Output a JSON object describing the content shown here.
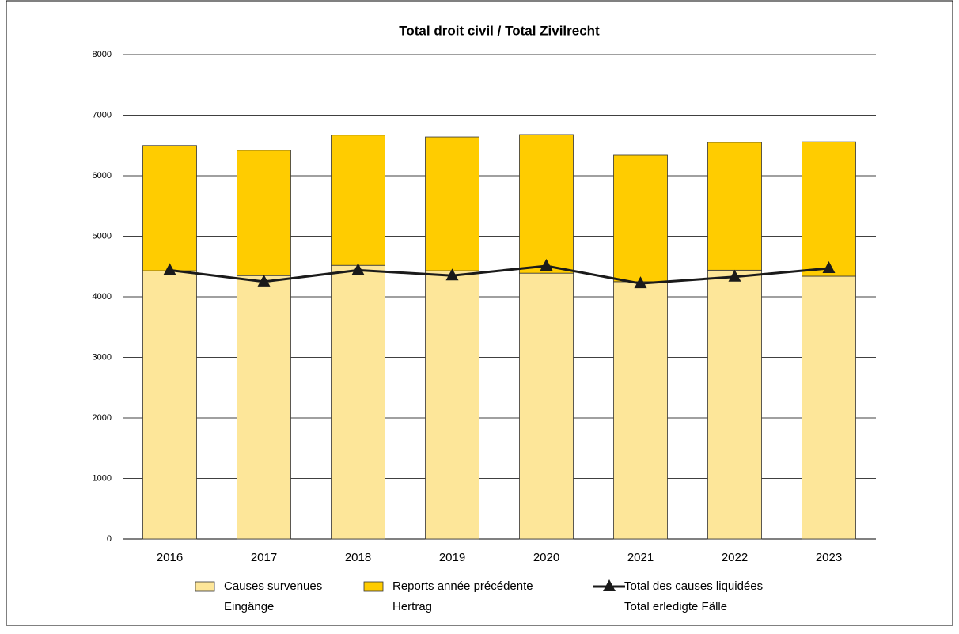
{
  "chart_data": {
    "type": "bar",
    "stacked": true,
    "title": "Total droit civil / Total Zivilrecht",
    "categories": [
      "2016",
      "2017",
      "2018",
      "2019",
      "2020",
      "2021",
      "2022",
      "2023"
    ],
    "series": [
      {
        "name": "Causes survenues\nEingänge",
        "type": "bar",
        "color": "#fde699",
        "values": [
          4430,
          4350,
          4520,
          4430,
          4390,
          4250,
          4440,
          4340
        ]
      },
      {
        "name": "Reports année précédente\nHertrag",
        "type": "bar",
        "color": "#ffcc00",
        "values": [
          2070,
          2070,
          2150,
          2210,
          2290,
          2090,
          2110,
          2220
        ]
      },
      {
        "name": "Total des causes liquidées\nTotal erledigte Fälle",
        "type": "line",
        "color": "#1a1a1a",
        "values": [
          4440,
          4250,
          4440,
          4350,
          4510,
          4220,
          4330,
          4470
        ]
      }
    ],
    "ylim": [
      0,
      8000
    ],
    "yticks": [
      0,
      1000,
      2000,
      3000,
      4000,
      5000,
      6000,
      7000,
      8000
    ],
    "grid": true,
    "legend": "bottom"
  }
}
